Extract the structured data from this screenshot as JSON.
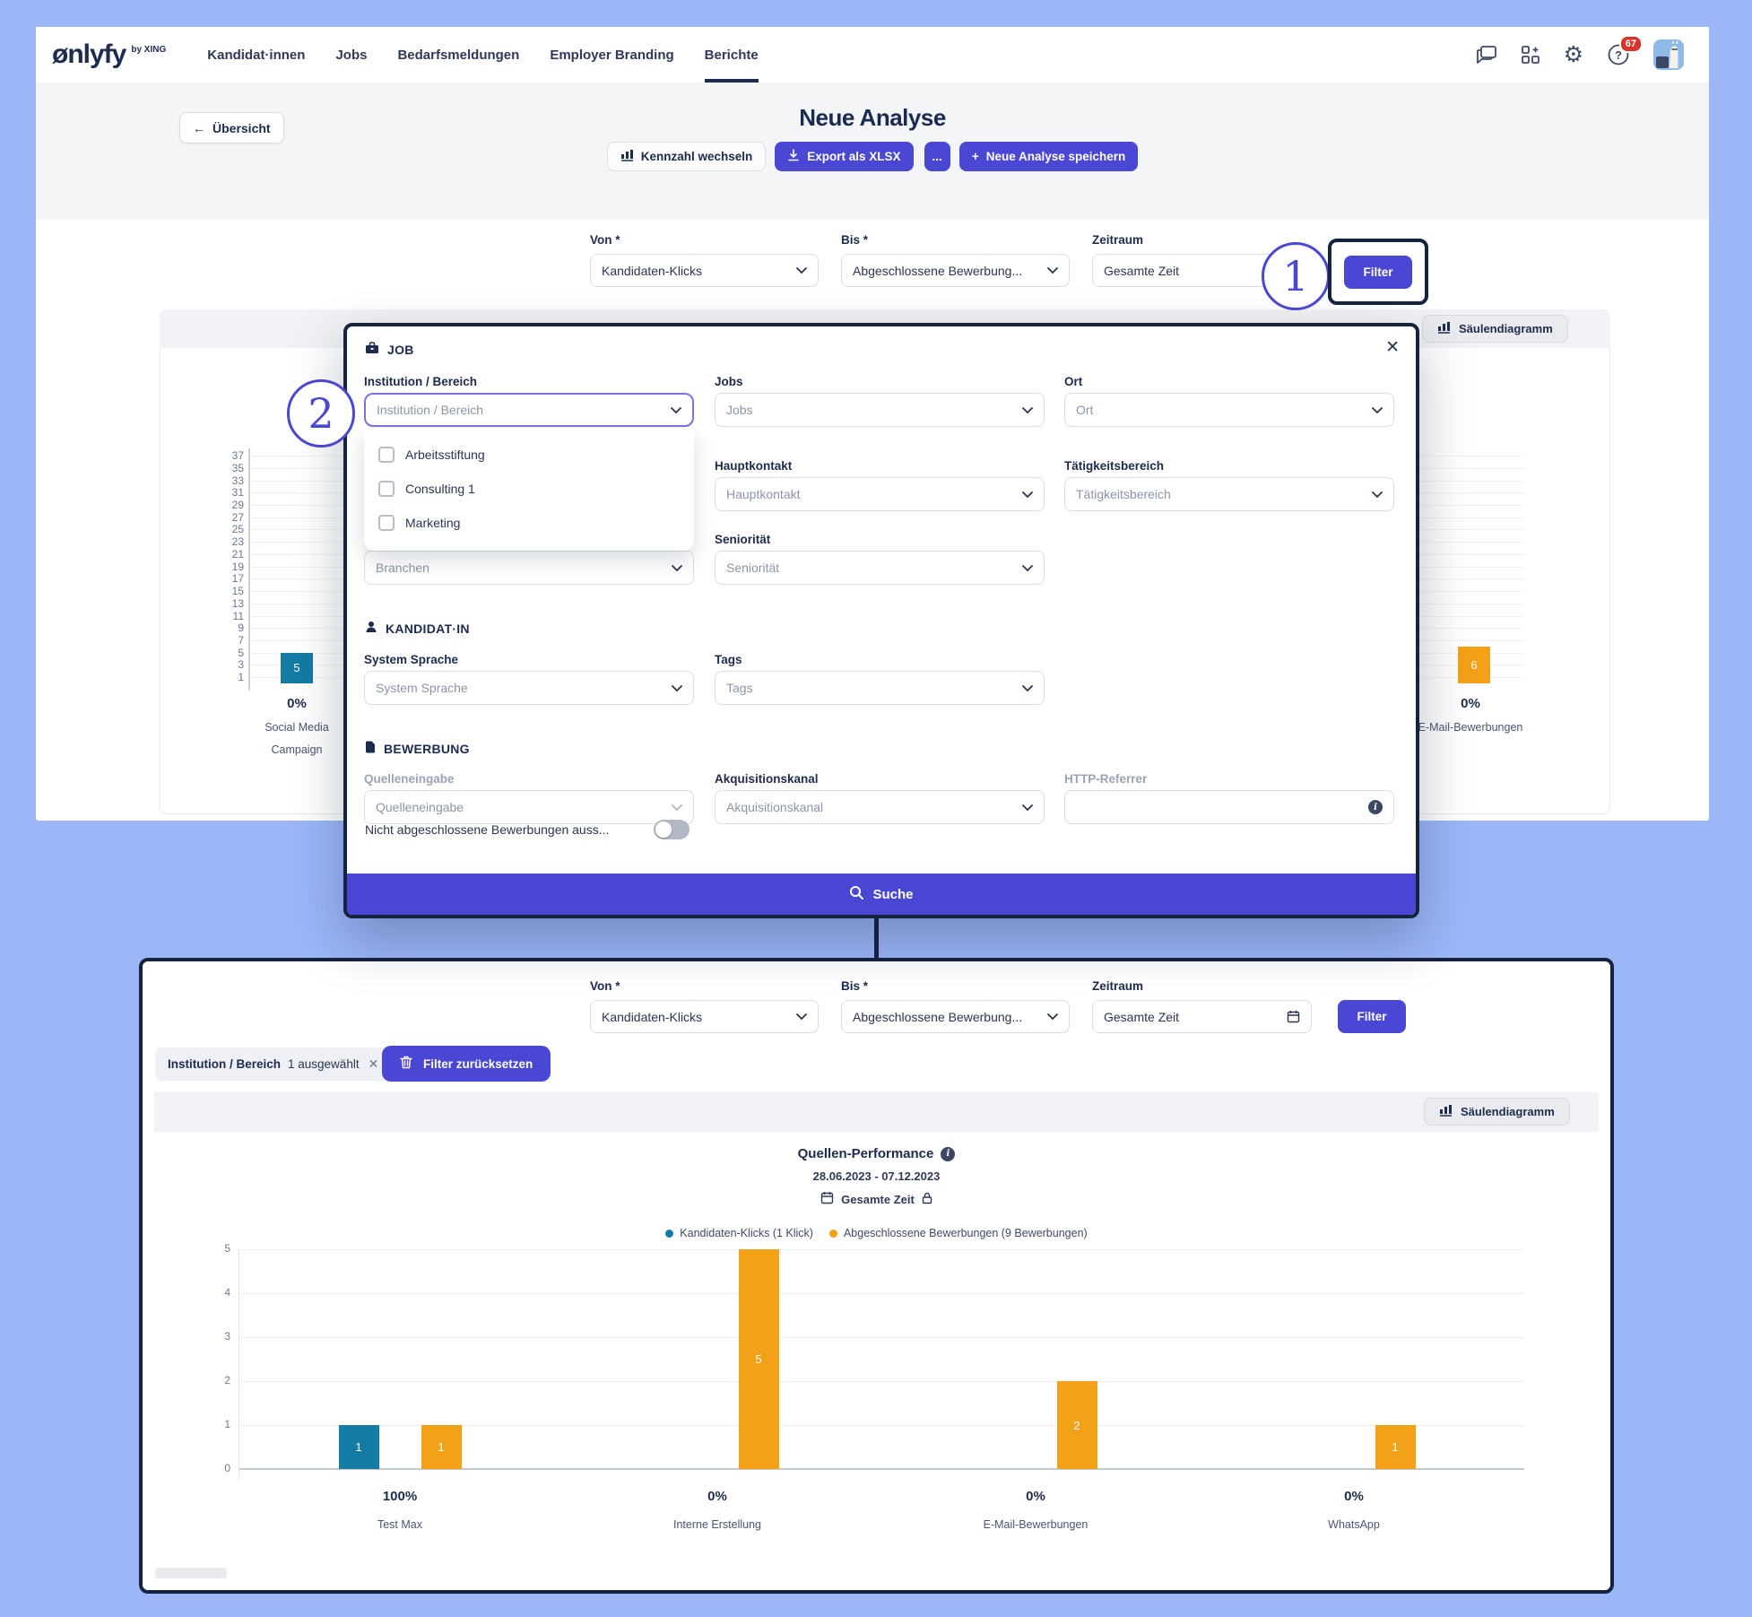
{
  "colors": {
    "accent": "#4a47d5",
    "outline": "#16233f",
    "teal": "#147ba5",
    "orange": "#f2a118",
    "navy": "#1d2b4e",
    "badge_red": "#d7352c",
    "page_background": "#9cb6f8"
  },
  "topnav": {
    "logo": "ønlyfy",
    "logo_by": "by XING",
    "items": [
      "Kandidat·innen",
      "Jobs",
      "Bedarfsmeldungen",
      "Employer Branding",
      "Berichte"
    ],
    "active_item": "Berichte",
    "badge_count": "67"
  },
  "header": {
    "back_label": "Übersicht",
    "title": "Neue Analyse",
    "kennzahl_label": "Kennzahl wechseln",
    "export_label": "Export als XLSX",
    "more_label": "...",
    "save_label": "Neue Analyse speichern"
  },
  "filter_row": {
    "von_label": "Von *",
    "von_value": "Kandidaten-Klicks",
    "bis_label": "Bis *",
    "bis_value": "Abgeschlossene Bewerbung...",
    "zeitraum_label": "Zeitraum",
    "zeitraum_value": "Gesamte Zeit",
    "filter_label": "Filter"
  },
  "annotations": {
    "step1": "1",
    "step2": "2"
  },
  "bg_panel": {
    "chart_button": "Säulendiagramm"
  },
  "modal": {
    "close": "✕",
    "sections": {
      "job": "JOB",
      "kandidat": "KANDIDAT·IN",
      "bewerbung": "BEWERBUNG"
    },
    "fields": [
      {
        "name": "institution-bereich",
        "label": "Institution / Bereich",
        "placeholder": "Institution / Bereich",
        "col": 0,
        "row": 0,
        "focused": true
      },
      {
        "name": "jobs",
        "label": "Jobs",
        "placeholder": "Jobs",
        "col": 1,
        "row": 0
      },
      {
        "name": "ort",
        "label": "Ort",
        "placeholder": "Ort",
        "col": 2,
        "row": 0
      },
      {
        "name": "hauptkontakt",
        "label": "Hauptkontakt",
        "placeholder": "Hauptkontakt",
        "col": 1,
        "row": 1
      },
      {
        "name": "taetigkeitsbereich",
        "label": "Tätigkeitsbereich",
        "placeholder": "Tätigkeitsbereich",
        "col": 2,
        "row": 1
      },
      {
        "name": "branchen",
        "label": "Branchen",
        "placeholder": "Branchen",
        "col": 0,
        "row": 2,
        "label_hidden": true
      },
      {
        "name": "senioritaet",
        "label": "Seniorität",
        "placeholder": "Seniorität",
        "col": 1,
        "row": 2
      },
      {
        "name": "system-sprache",
        "label": "System Sprache",
        "placeholder": "System Sprache",
        "col": 0,
        "row": 3
      },
      {
        "name": "tags",
        "label": "Tags",
        "placeholder": "Tags",
        "col": 1,
        "row": 3
      },
      {
        "name": "quelleneingabe",
        "label": "Quelleneingabe",
        "placeholder": "Quelleneingabe",
        "col": 0,
        "row": 4,
        "muted": true
      },
      {
        "name": "akquisitionskanal",
        "label": "Akquisitionskanal",
        "placeholder": "Akquisitionskanal",
        "col": 1,
        "row": 4
      },
      {
        "name": "http-referrer",
        "label": "HTTP-Referrer",
        "placeholder": "",
        "col": 2,
        "row": 4,
        "muted": true,
        "kind": "input",
        "suffix_icon": "info-icon"
      }
    ],
    "dropdown_options": [
      "Arbeitsstiftung",
      "Consulting 1",
      "Marketing"
    ],
    "toggle_label": "Nicht abgeschlossene Bewerbungen auss...",
    "toggle_state": "off",
    "search_label": "Suche"
  },
  "bottom_panel": {
    "chip_bold": "Institution / Bereich",
    "chip_count": "1 ausgewählt",
    "chip_close": "✕",
    "reset_label": "Filter zurücksetzen",
    "chart_button": "Säulendiagramm"
  },
  "chart_data": [
    {
      "type": "bar",
      "location": "bottom-panel",
      "title": "Quellen-Performance",
      "subtitle": "28.06.2023 - 07.12.2023",
      "period_label": "Gesamte Zeit",
      "legend": [
        {
          "label": "Kandidaten-Klicks (1 Klick)",
          "color": "#147ba5"
        },
        {
          "label": "Abgeschlossene Bewerbungen (9 Bewerbungen)",
          "color": "#f2a118"
        }
      ],
      "categories": [
        "Test Max",
        "Interne Erstellung",
        "E-Mail-Bewerbungen",
        "WhatsApp"
      ],
      "category_percentages": [
        "100%",
        "0%",
        "0%",
        "0%"
      ],
      "series": [
        {
          "name": "Kandidaten-Klicks",
          "color": "#147ba5",
          "values": [
            1,
            0,
            0,
            0
          ]
        },
        {
          "name": "Abgeschlossene Bewerbungen",
          "color": "#f2a118",
          "values": [
            1,
            5,
            2,
            1
          ]
        }
      ],
      "ylim": [
        0,
        5
      ],
      "yticks": [
        0,
        1,
        2,
        3,
        4,
        5
      ],
      "grid": true,
      "legend_position": "top"
    },
    {
      "type": "bar",
      "location": "background-top",
      "note": "partially covered by filter modal",
      "yticks": [
        1,
        3,
        5,
        7,
        9,
        11,
        13,
        15,
        17,
        19,
        21,
        23,
        25,
        27,
        29,
        31,
        33,
        35,
        37
      ],
      "ylim": [
        0,
        38
      ],
      "visible_bars": [
        {
          "category": "Social Media Campaign",
          "label_lines": [
            "Social Media",
            "Campaign"
          ],
          "percentage": "0%",
          "series": "Kandidaten-Klicks",
          "value": 5,
          "color": "#147ba5"
        },
        {
          "category": "E-Mail-Bewerbungen",
          "label_lines": [
            "E-Mail-Bewerbungen"
          ],
          "percentage": "0%",
          "series": "Abgeschlossene Bewerbungen",
          "value": 6,
          "color": "#f2a118"
        }
      ]
    }
  ]
}
